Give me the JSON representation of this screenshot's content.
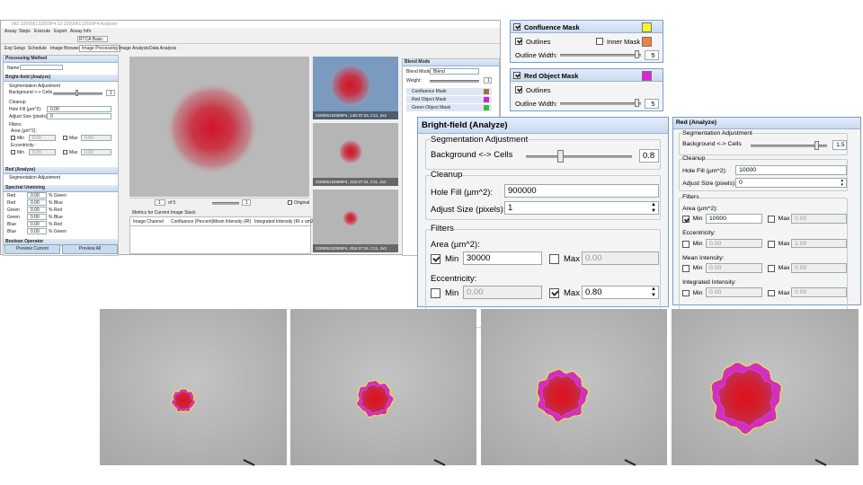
{
  "window": {
    "title": "IM2 220906132659P4 22-220906132659P4 Analyzer",
    "menu": [
      "Assay",
      "Steps",
      "Execute",
      "Export",
      "Assay Info"
    ],
    "protocol": "RTCA Basic",
    "tabs": [
      "Exp Setup",
      "Schedule",
      "Image Browser",
      "Image Processing",
      "Image Analysis",
      "Data Analysis"
    ],
    "processing_method": {
      "title": "Processing Method",
      "name_label": "Name"
    },
    "bright_field_mini": {
      "title": "Bright-field (Analyze)",
      "segmentation": "Segmentation Adjustment",
      "background": "Background <-> Cells",
      "background_value": "1",
      "cleanup": "Cleanup",
      "hole_fill": "Hole Fill (µm^2):",
      "hole_fill_value": "0.00",
      "adjust_size": "Adjust Size (pixels):",
      "adjust_size_value": "0",
      "filters": "Filters",
      "area": "Area (µm^2):",
      "min": "Min",
      "max": "Max",
      "min_value": "0.00",
      "max_value": "0.00",
      "eccentricity": "Eccentricity:"
    },
    "red_mini": {
      "title": "Red (Analyze)",
      "segmentation": "Segmentation Adjustment"
    },
    "spectral_unmixing": {
      "title": "Spectral Unmixing",
      "rows": [
        [
          "Red",
          "0.00",
          "% Green"
        ],
        [
          "Red",
          "0.00",
          "% Blue"
        ],
        [
          "Green",
          "0.00",
          "% Red"
        ],
        [
          "Green",
          "0.00",
          "% Blue"
        ],
        [
          "Blue",
          "0.00",
          "% Red"
        ],
        [
          "Blue",
          "0.00",
          "% Green"
        ]
      ]
    },
    "boolean_operator": "Boolean Operator",
    "buttons": [
      "Preview Current",
      "Preview All"
    ],
    "image_nav": {
      "page": "1",
      "of": "of 5",
      "zoom": "1",
      "original": "Original"
    },
    "metrics": {
      "title": "Metrics for Current Image Stack",
      "headers": [
        "Image Channel",
        "Confluence (Percent)",
        "Mean Intensity (RI)",
        "Integrated Intensity (RI x um2/Im"
      ]
    },
    "thumbnails": [
      "220906132659P4, 14D:37:34, C11, 2x2",
      "220906132659P4, 11D:37:34, C11, 2x2",
      "220906132659P4, 0D4:37:34, C11, 2x2"
    ],
    "blend": {
      "title": "Blend Mode",
      "mode_label": "Blend Mode:",
      "mode": "Blend",
      "weight_label": "Weight:",
      "weight": "1",
      "layers": [
        "Confluence Mask",
        "Red Object Mask",
        "Green Object Mask"
      ]
    }
  },
  "confluence_mask": {
    "title": "Confluence Mask",
    "outlines": "Outlines",
    "inner_mask": "Inner Mask",
    "outline_width_label": "Outline Width:",
    "outline_width": "5"
  },
  "red_object_mask": {
    "title": "Red Object Mask",
    "outlines": "Outlines",
    "outline_width_label": "Outline Width:",
    "outline_width": "5"
  },
  "bright_field": {
    "title": "Bright-field (Analyze)",
    "segmentation": "Segmentation Adjustment",
    "background_label": "Background <-> Cells",
    "background_value": "0.8",
    "cleanup": "Cleanup",
    "hole_fill_label": "Hole Fill (µm^2):",
    "hole_fill_value": "900000",
    "adjust_size_label": "Adjust Size (pixels):",
    "adjust_size_value": "1",
    "filters": "Filters",
    "area_label": "Area (µm^2):",
    "min_label": "Min",
    "max_label": "Max",
    "area_min": "30000",
    "area_max": "0.00",
    "eccentricity_label": "Eccentricity:",
    "ecc_min": "0.00",
    "ecc_max": "0.80"
  },
  "red_analyze": {
    "title": "Red (Analyze)",
    "segmentation": "Segmentation Adjustment",
    "background_label": "Background <-> Cells",
    "background_value": "1.5",
    "cleanup": "Cleanup",
    "hole_fill_label": "Hole Fill (µm^2):",
    "hole_fill_value": "10000",
    "adjust_size_label": "Adjust Size (pixels):",
    "adjust_size_value": "0",
    "filters": "Filters",
    "area_label": "Area (µm^2):",
    "min_label": "Min",
    "max_label": "Max",
    "area_min": "10000",
    "area_max": "0.00",
    "eccentricity_label": "Eccentricity:",
    "ecc_min": "0.00",
    "ecc_max": "1.00",
    "mean_intensity_label": "Mean Intensity:",
    "mi_min": "0.00",
    "mi_max": "0.00",
    "integrated_label": "Integrated Intensity:",
    "ii_min": "0.00",
    "ii_max": "0.00"
  }
}
